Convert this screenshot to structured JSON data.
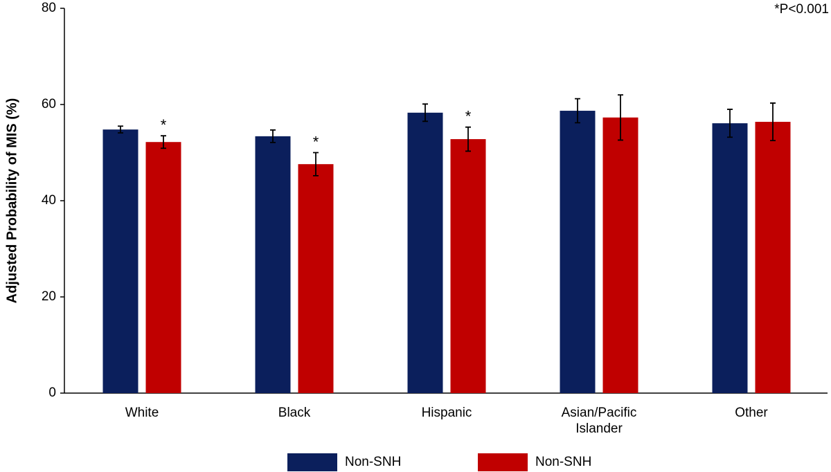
{
  "chart_data": {
    "type": "bar",
    "ylabel": "Adjusted Probability of MIS (%)",
    "annotation": "*P<0.001",
    "categories": [
      "White",
      "Black",
      "Hispanic",
      "Asian/Pacific\nIslander",
      "Other"
    ],
    "series": [
      {
        "name": "Non-SNH",
        "color": "#0b1f5c",
        "values": [
          54.8,
          53.4,
          58.3,
          58.7,
          56.1
        ],
        "errors": [
          0.7,
          1.3,
          1.8,
          2.5,
          2.9
        ]
      },
      {
        "name": "Non-SNH",
        "color": "#c00000",
        "values": [
          52.2,
          47.6,
          52.8,
          57.3,
          56.4
        ],
        "errors": [
          1.3,
          2.4,
          2.5,
          4.7,
          3.9
        ],
        "significance_labels": [
          "*",
          "*",
          "*",
          null,
          null
        ]
      }
    ],
    "ylim": [
      0,
      80
    ],
    "yticks": [
      0,
      20,
      40,
      60,
      80
    ],
    "legend": "bottom"
  }
}
